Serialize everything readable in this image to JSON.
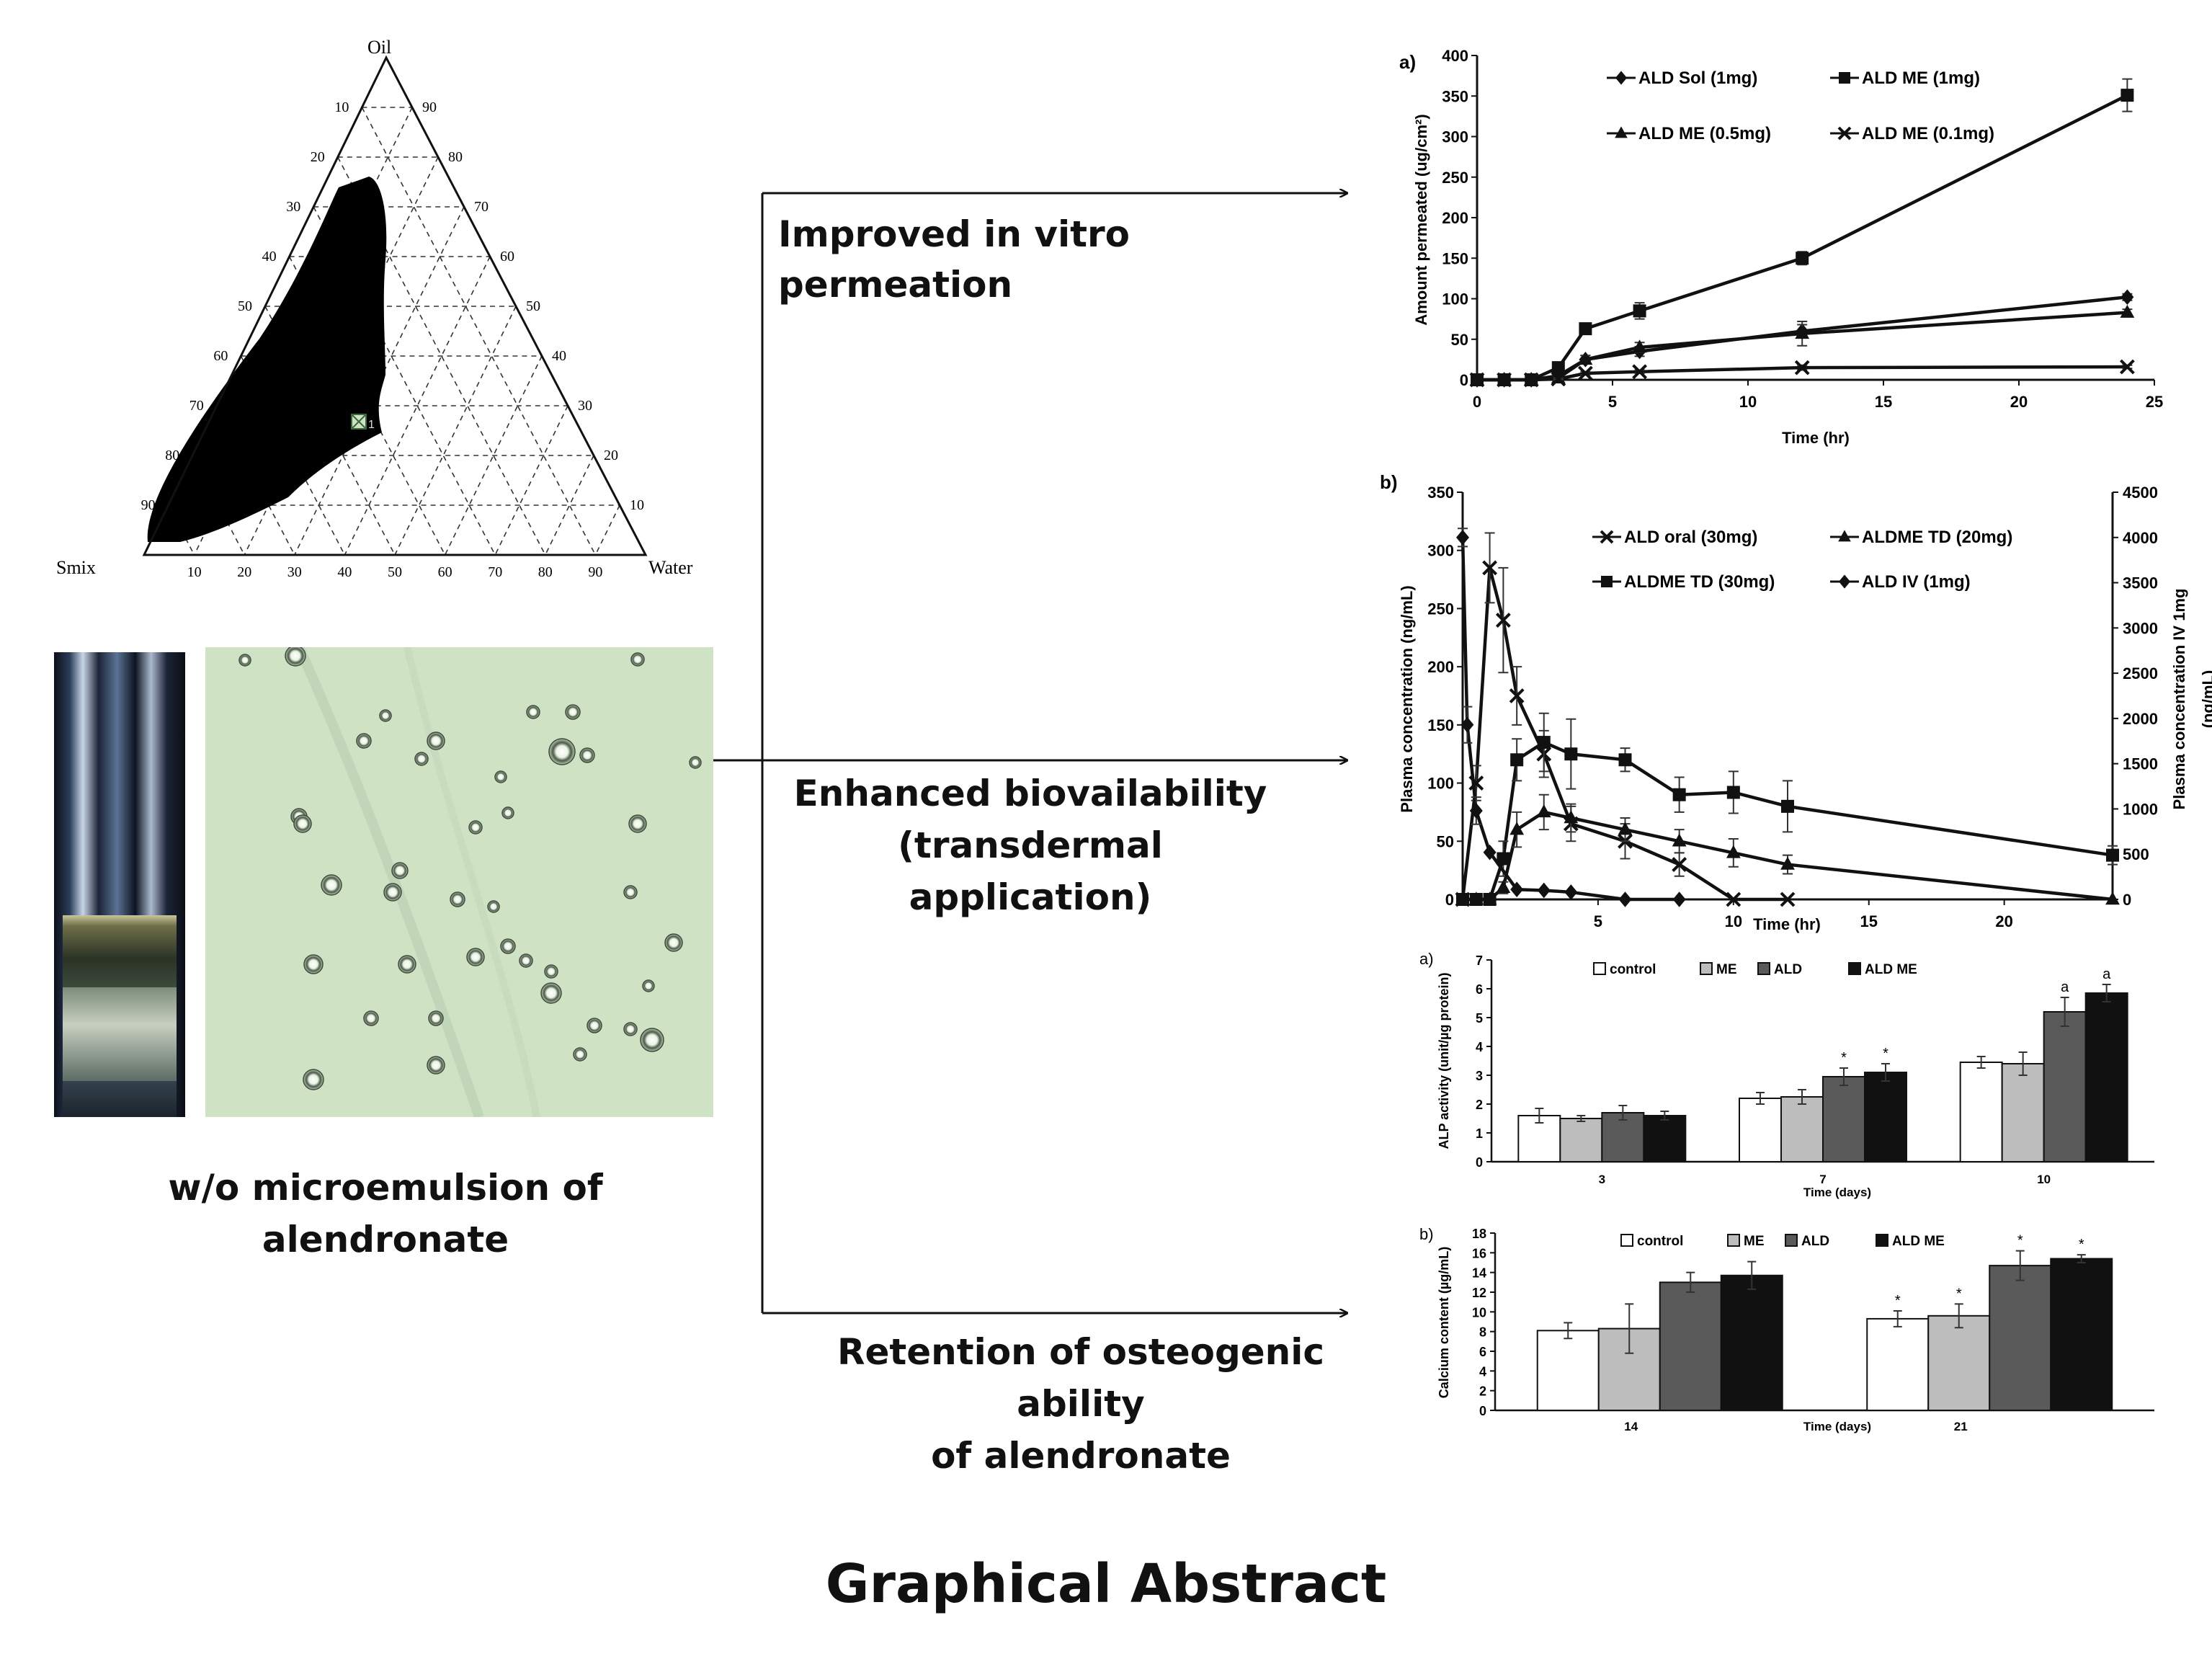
{
  "ternary": {
    "apex_top": "Oil",
    "apex_left": "Smix",
    "apex_right": "Water",
    "ticks_left": [
      "10",
      "20",
      "30",
      "40",
      "50",
      "60",
      "70",
      "80",
      "90"
    ],
    "ticks_right": [
      "90",
      "80",
      "70",
      "60",
      "50",
      "40",
      "30",
      "20",
      "10"
    ],
    "ticks_bottom": [
      "10",
      "20",
      "30",
      "40",
      "50",
      "60",
      "70",
      "80",
      "90"
    ],
    "point_label": "1"
  },
  "captions": {
    "microemulsion_line1": "w/o microemulsion of",
    "microemulsion_line2": "alendronate",
    "permeation": "Improved in vitro permeation",
    "bioavail_line1": "Enhanced biovailability",
    "bioavail_line2": "(transdermal application)",
    "osteo_line1": "Retention of osteogenic ability",
    "osteo_line2": "of alendronate",
    "footer": "Graphical Abstract"
  },
  "chart_data": [
    {
      "id": "permeation",
      "type": "line",
      "panel": "a)",
      "xlabel": "Time (hr)",
      "ylabel": "Amount permeated (ug/cm²)",
      "xlim": [
        0,
        25
      ],
      "ylim": [
        0,
        400
      ],
      "xticks": [
        0,
        5,
        10,
        15,
        20,
        25
      ],
      "yticks": [
        0,
        50,
        100,
        150,
        200,
        250,
        300,
        350,
        400
      ],
      "series": [
        {
          "name": "ALD Sol (1mg)",
          "marker": "diamond",
          "x": [
            0,
            1,
            2,
            3,
            4,
            6,
            12,
            24
          ],
          "y": [
            0,
            0,
            0,
            5,
            25,
            35,
            60,
            102
          ],
          "err": [
            0,
            0,
            0,
            2,
            5,
            6,
            8,
            4
          ]
        },
        {
          "name": "ALD ME (1mg)",
          "marker": "square",
          "x": [
            0,
            1,
            2,
            3,
            4,
            6,
            12,
            24
          ],
          "y": [
            0,
            0,
            0,
            15,
            63,
            85,
            150,
            351
          ],
          "err": [
            0,
            0,
            0,
            3,
            6,
            10,
            8,
            20
          ]
        },
        {
          "name": "ALD ME (0.5mg)",
          "marker": "triangle",
          "x": [
            0,
            1,
            2,
            3,
            4,
            6,
            12,
            24
          ],
          "y": [
            0,
            0,
            0,
            2,
            25,
            40,
            57,
            83
          ],
          "err": [
            0,
            0,
            0,
            2,
            5,
            6,
            15,
            4
          ]
        },
        {
          "name": "ALD ME (0.1mg)",
          "marker": "x",
          "x": [
            0,
            1,
            2,
            3,
            4,
            6,
            12,
            24
          ],
          "y": [
            0,
            0,
            0,
            1,
            8,
            10,
            15,
            16
          ],
          "err": [
            0,
            0,
            0,
            1,
            2,
            2,
            3,
            2
          ]
        }
      ]
    },
    {
      "id": "plasma",
      "type": "line",
      "panel": "b)",
      "xlabel": "Time (hr)",
      "ylabel": "Plasma concentration (ng/mL)",
      "y2label_line1": "Plasma concentration IV 1mg",
      "y2label_line2": "(ng/mL)",
      "xlim": [
        0,
        24
      ],
      "ylim": [
        0,
        350
      ],
      "y2lim": [
        0,
        4500
      ],
      "xticks": [
        5,
        10,
        15,
        20
      ],
      "yticks": [
        0,
        50,
        100,
        150,
        200,
        250,
        300,
        350
      ],
      "y2ticks": [
        0,
        500,
        1000,
        1500,
        2000,
        2500,
        3000,
        3500,
        4000,
        4500
      ],
      "series": [
        {
          "name": "ALD oral (30mg)",
          "marker": "x",
          "axis": "left",
          "x": [
            0,
            0.5,
            1,
            1.5,
            2,
            3,
            4,
            6,
            8,
            10,
            12
          ],
          "y": [
            0,
            100,
            285,
            240,
            175,
            125,
            65,
            50,
            30,
            0,
            0
          ],
          "err": [
            0,
            15,
            30,
            45,
            25,
            20,
            15,
            15,
            10,
            0,
            0
          ]
        },
        {
          "name": "ALDME TD (20mg)",
          "marker": "triangle",
          "axis": "left",
          "x": [
            0,
            0.5,
            1,
            1.5,
            2,
            3,
            4,
            6,
            8,
            10,
            12,
            24
          ],
          "y": [
            0,
            0,
            0,
            10,
            60,
            75,
            70,
            60,
            50,
            40,
            30,
            0
          ],
          "err": [
            0,
            0,
            0,
            5,
            15,
            15,
            12,
            10,
            10,
            12,
            8,
            0
          ]
        },
        {
          "name": "ALDME TD (30mg)",
          "marker": "square",
          "axis": "left",
          "x": [
            0,
            0.5,
            1,
            1.5,
            2,
            3,
            4,
            6,
            8,
            10,
            12,
            24
          ],
          "y": [
            0,
            0,
            0,
            35,
            120,
            135,
            125,
            120,
            90,
            92,
            80,
            38
          ],
          "err": [
            0,
            0,
            0,
            15,
            18,
            25,
            30,
            10,
            15,
            18,
            22,
            8
          ]
        },
        {
          "name": "ALD IV (1mg)",
          "marker": "diamond",
          "axis": "right",
          "x": [
            0,
            0.17,
            0.5,
            1,
            2,
            3,
            4,
            6,
            8
          ],
          "y": [
            4000,
            1930,
            980,
            520,
            110,
            100,
            80,
            0,
            0
          ],
          "err": [
            100,
            200,
            150,
            0,
            0,
            0,
            0,
            0,
            0
          ]
        }
      ]
    },
    {
      "id": "alp",
      "type": "bar",
      "panel": "a)",
      "xlabel": "Time (days)",
      "ylabel": "ALP activity (unit/µg protein)",
      "ylim": [
        0,
        7
      ],
      "yticks": [
        0,
        1,
        2,
        3,
        4,
        5,
        6,
        7
      ],
      "categories": [
        "3",
        "7",
        "10"
      ],
      "series": [
        {
          "name": "control",
          "color": "#ffffff",
          "values": [
            1.6,
            2.2,
            3.45
          ],
          "err": [
            0.25,
            0.2,
            0.2
          ]
        },
        {
          "name": "ME",
          "color": "#bdbdbd",
          "values": [
            1.5,
            2.25,
            3.4
          ],
          "err": [
            0.1,
            0.25,
            0.4
          ]
        },
        {
          "name": "ALD",
          "color": "#5a5a5a",
          "values": [
            1.7,
            2.95,
            5.2
          ],
          "err": [
            0.25,
            0.3,
            0.5
          ]
        },
        {
          "name": "ALD ME",
          "color": "#111111",
          "values": [
            1.6,
            3.1,
            5.85
          ],
          "err": [
            0.15,
            0.3,
            0.3
          ]
        }
      ],
      "annotations": [
        {
          "category": "7",
          "series": "ALD",
          "text": "*"
        },
        {
          "category": "7",
          "series": "ALD ME",
          "text": "*"
        },
        {
          "category": "10",
          "series": "ALD",
          "text": "a"
        },
        {
          "category": "10",
          "series": "ALD ME",
          "text": "a"
        }
      ]
    },
    {
      "id": "calcium",
      "type": "bar",
      "panel": "b)",
      "xlabel": "Time (days)",
      "ylabel": "Calcium content (µg/mL)",
      "ylim": [
        0,
        18
      ],
      "yticks": [
        0,
        2,
        4,
        6,
        8,
        10,
        12,
        14,
        16,
        18
      ],
      "categories": [
        "14",
        "21"
      ],
      "series": [
        {
          "name": "control",
          "color": "#ffffff",
          "values": [
            8.1,
            9.3
          ],
          "err": [
            0.8,
            0.8
          ]
        },
        {
          "name": "ME",
          "color": "#bdbdbd",
          "values": [
            8.3,
            9.6
          ],
          "err": [
            2.5,
            1.2
          ]
        },
        {
          "name": "ALD",
          "color": "#5a5a5a",
          "values": [
            13.0,
            14.7
          ],
          "err": [
            1.0,
            1.5
          ]
        },
        {
          "name": "ALD ME",
          "color": "#111111",
          "values": [
            13.7,
            15.4
          ],
          "err": [
            1.4,
            0.4
          ]
        }
      ],
      "annotations": [
        {
          "category": "21",
          "series": "control",
          "text": "*"
        },
        {
          "category": "21",
          "series": "ME",
          "text": "*"
        },
        {
          "category": "21",
          "series": "ALD",
          "text": "*"
        },
        {
          "category": "21",
          "series": "ALD ME",
          "text": "*"
        }
      ]
    }
  ],
  "colors": {
    "ink": "#111111",
    "micrograph_bg": "#cfe3c4",
    "vial_glass": "#1e2a3c"
  }
}
